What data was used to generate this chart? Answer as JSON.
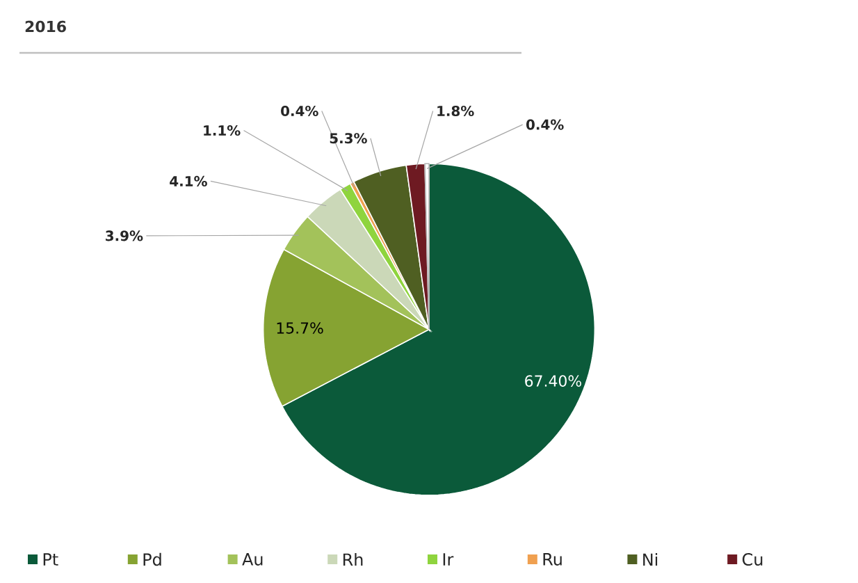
{
  "chart_data": {
    "type": "pie",
    "title": "2016",
    "categories": [
      "Pt",
      "Pd",
      "Au",
      "Rh",
      "Ir",
      "Ru",
      "Ni",
      "Cu",
      null
    ],
    "values": [
      67.4,
      15.7,
      3.9,
      4.1,
      1.1,
      0.4,
      5.3,
      1.8,
      0.4
    ],
    "value_labels": [
      "67.40%",
      "15.7%",
      "3.9%",
      "4.1%",
      "1.1%",
      "0.4%",
      "5.3%",
      "1.8%",
      "0.4%"
    ],
    "colors": [
      "#0b5a3a",
      "#86a332",
      "#a3c25a",
      "#cbd8b8",
      "#8fd43e",
      "#f0a050",
      "#4f5f22",
      "#6e1a22",
      "#ffffff"
    ],
    "legend": "bottom"
  }
}
